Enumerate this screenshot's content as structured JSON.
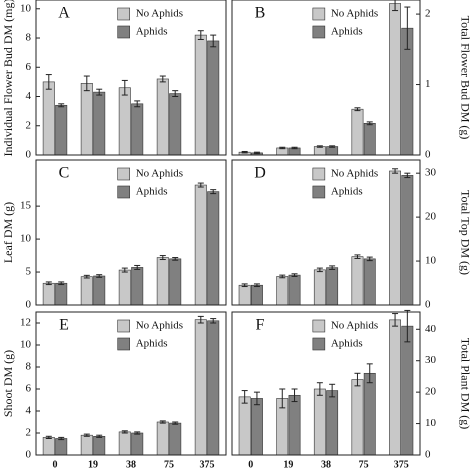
{
  "chart_data": [
    {
      "type": "bar",
      "label": "A",
      "ylabel": "Individual Flower Bud DM (mg)",
      "y_axis_side": "left",
      "ylim": [
        0,
        10.6
      ],
      "yticks": [
        0,
        2,
        4,
        6,
        8,
        10
      ],
      "series": [
        {
          "name": "No Aphids",
          "color": "#c8c8c8",
          "values": [
            5.0,
            4.9,
            4.6,
            5.2,
            8.2
          ],
          "errors": [
            0.5,
            0.5,
            0.5,
            0.2,
            0.3
          ]
        },
        {
          "name": "Aphids",
          "color": "#808080",
          "values": [
            3.4,
            4.3,
            3.5,
            4.2,
            7.8
          ],
          "errors": [
            0.1,
            0.2,
            0.2,
            0.2,
            0.4
          ]
        }
      ]
    },
    {
      "type": "bar",
      "label": "B",
      "ylabel": "Total Flower Bud DM (g)",
      "y_axis_side": "right",
      "ylim": [
        0,
        2.2
      ],
      "yticks": [
        0,
        1,
        2
      ],
      "series": [
        {
          "name": "No Aphids",
          "color": "#c8c8c8",
          "values": [
            0.04,
            0.1,
            0.12,
            0.65,
            2.15
          ],
          "errors": [
            0.01,
            0.01,
            0.01,
            0.02,
            0.1
          ]
        },
        {
          "name": "Aphids",
          "color": "#808080",
          "values": [
            0.03,
            0.1,
            0.12,
            0.45,
            1.8
          ],
          "errors": [
            0.01,
            0.01,
            0.01,
            0.02,
            0.3
          ]
        }
      ]
    },
    {
      "type": "bar",
      "label": "C",
      "ylabel": "Leaf DM (g)",
      "y_axis_side": "left",
      "ylim": [
        0,
        22
      ],
      "yticks": [
        0,
        5,
        10,
        15
      ],
      "series": [
        {
          "name": "No Aphids",
          "color": "#c8c8c8",
          "values": [
            3.3,
            4.3,
            5.3,
            7.2,
            18.2
          ],
          "errors": [
            0.2,
            0.2,
            0.3,
            0.3,
            0.3
          ]
        },
        {
          "name": "Aphids",
          "color": "#808080",
          "values": [
            3.3,
            4.4,
            5.7,
            7.0,
            17.2
          ],
          "errors": [
            0.2,
            0.2,
            0.3,
            0.2,
            0.3
          ]
        }
      ]
    },
    {
      "type": "bar",
      "label": "D",
      "ylabel": "Total Top DM (g)",
      "y_axis_side": "right",
      "ylim": [
        0,
        33
      ],
      "yticks": [
        0,
        10,
        20,
        30
      ],
      "series": [
        {
          "name": "No Aphids",
          "color": "#c8c8c8",
          "values": [
            4.5,
            6.5,
            8.0,
            11.0,
            30.5
          ],
          "errors": [
            0.3,
            0.3,
            0.4,
            0.4,
            0.5
          ]
        },
        {
          "name": "Aphids",
          "color": "#808080",
          "values": [
            4.5,
            6.8,
            8.5,
            10.5,
            29.5
          ],
          "errors": [
            0.3,
            0.3,
            0.4,
            0.4,
            0.5
          ]
        }
      ]
    },
    {
      "type": "bar",
      "label": "E",
      "ylabel": "Shoot DM (g)",
      "y_axis_side": "left",
      "ylim": [
        0,
        13
      ],
      "yticks": [
        0,
        2,
        4,
        6,
        8,
        10,
        12
      ],
      "categories": [
        "0",
        "19",
        "38",
        "75",
        "375"
      ],
      "series": [
        {
          "name": "No Aphids",
          "color": "#c8c8c8",
          "values": [
            1.6,
            1.8,
            2.1,
            3.0,
            12.3
          ],
          "errors": [
            0.1,
            0.1,
            0.1,
            0.1,
            0.3
          ]
        },
        {
          "name": "Aphids",
          "color": "#808080",
          "values": [
            1.5,
            1.7,
            2.0,
            2.9,
            12.2
          ],
          "errors": [
            0.1,
            0.1,
            0.1,
            0.1,
            0.2
          ]
        }
      ]
    },
    {
      "type": "bar",
      "label": "F",
      "ylabel": "Total Plant DM (g)",
      "y_axis_side": "right",
      "ylim": [
        0,
        45.5
      ],
      "yticks": [
        0,
        10,
        20,
        30,
        40
      ],
      "categories": [
        "0",
        "19",
        "38",
        "75",
        "375"
      ],
      "series": [
        {
          "name": "No Aphids",
          "color": "#c8c8c8",
          "values": [
            18.5,
            18.0,
            21.0,
            24.0,
            43.0
          ],
          "errors": [
            2,
            3,
            2,
            2,
            2
          ]
        },
        {
          "name": "Aphids",
          "color": "#808080",
          "values": [
            18.0,
            19.0,
            20.5,
            26.0,
            41.0
          ],
          "errors": [
            2,
            2,
            2,
            3,
            5
          ]
        }
      ]
    }
  ]
}
